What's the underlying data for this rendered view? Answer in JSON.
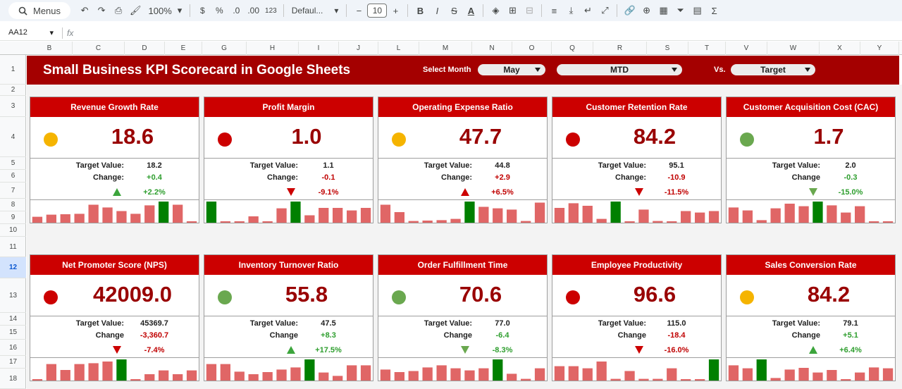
{
  "toolbar": {
    "menus_label": "Menus",
    "zoom": "100%",
    "currency": "$",
    "percent": "%",
    "dec_decrease": ".0",
    "dec_increase": ".00",
    "number_format": "123",
    "font": "Defaul...",
    "font_size": "10",
    "bold": "B",
    "italic": "I"
  },
  "formula_bar": {
    "cell_ref": "AA12",
    "fx": "fx"
  },
  "columns": [
    "B",
    "C",
    "D",
    "E",
    "G",
    "H",
    "I",
    "J",
    "L",
    "M",
    "N",
    "O",
    "Q",
    "R",
    "S",
    "T",
    "V",
    "W",
    "X",
    "Y"
  ],
  "rows": [
    "1",
    "2",
    "3",
    "4",
    "5",
    "6",
    "7",
    "8",
    "9",
    "10",
    "11",
    "12",
    "13",
    "14",
    "15",
    "16",
    "17",
    "18"
  ],
  "selected_row": "12",
  "banner": {
    "title": "Small Business KPI Scorecard in Google Sheets",
    "select_month_label": "Select Month",
    "month": "May",
    "period": "MTD",
    "vs_label": "Vs.",
    "compare": "Target"
  },
  "colors": {
    "banner": "#a40000",
    "header": "#cc0000",
    "dot_yellow": "#f5b400",
    "dot_red": "#cc0000",
    "dot_green": "#6aa84f",
    "bar_red": "#e06666",
    "bar_green": "#008000"
  },
  "cards": [
    {
      "title": "Revenue Growth Rate",
      "value": "18.6",
      "status": "yellow",
      "target_label": "Target Value:",
      "target": "18.2",
      "change_label": "Change:",
      "change": "+0.4",
      "change_sign": "pos",
      "arrow": "up-green",
      "pct": "+2.2%",
      "pct_sign": "pos",
      "bars": [
        0.28,
        0.38,
        0.4,
        0.42,
        0.85,
        0.72,
        0.55,
        0.42,
        0.82,
        1.0,
        0.85,
        0.06
      ],
      "highlight": 9
    },
    {
      "title": "Profit Margin",
      "value": "1.0",
      "status": "red",
      "target_label": "Target Value:",
      "target": "1.1",
      "change_label": "Change:",
      "change": "-0.1",
      "change_sign": "neg",
      "arrow": "down-red",
      "pct": "-9.1%",
      "pct_sign": "neg",
      "bars": [
        1.0,
        0.06,
        0.06,
        0.3,
        0.06,
        0.68,
        1.0,
        0.35,
        0.7,
        0.7,
        0.58,
        0.7
      ],
      "highlight_list": [
        0,
        6
      ]
    },
    {
      "title": "Operating Expense Ratio",
      "value": "47.7",
      "status": "yellow",
      "target_label": "Target Value:",
      "target": "44.8",
      "change_label": "Change:",
      "change": "+2.9",
      "change_sign": "neg",
      "arrow": "up-red",
      "pct": "+6.5%",
      "pct_sign": "neg",
      "bars": [
        0.85,
        0.5,
        0.08,
        0.1,
        0.12,
        0.18,
        1.0,
        0.75,
        0.68,
        0.62,
        0.08,
        0.95
      ],
      "highlight": 6
    },
    {
      "title": "Customer Retention Rate",
      "value": "84.2",
      "status": "red",
      "target_label": "Target Value:",
      "target": "95.1",
      "change_label": "Change:",
      "change": "-10.9",
      "change_sign": "neg",
      "arrow": "down-red",
      "pct": "-11.5%",
      "pct_sign": "neg",
      "bars": [
        0.7,
        0.92,
        0.8,
        0.18,
        1.0,
        0.06,
        0.62,
        0.08,
        0.06,
        0.55,
        0.48,
        0.55
      ],
      "highlight": 4
    },
    {
      "title": "Customer Acquisition Cost (CAC)",
      "value": "1.7",
      "status": "green",
      "target_label": "Target Value:",
      "target": "2.0",
      "change_label": "Change",
      "change": "-0.3",
      "change_sign": "pos",
      "arrow": "down-green",
      "pct": "-15.0%",
      "pct_sign": "pos",
      "bars": [
        0.72,
        0.58,
        0.12,
        0.68,
        0.9,
        0.78,
        1.0,
        0.82,
        0.48,
        0.78,
        0.05,
        0.05
      ],
      "highlight": 6
    },
    {
      "title": "Net Promoter Score (NPS)",
      "value": "42009.0",
      "status": "red",
      "target_label": "Target Value:",
      "target": "45369.7",
      "change_label": "Change",
      "change": "-3,360.7",
      "change_sign": "neg",
      "arrow": "down-red",
      "pct": "-7.4%",
      "pct_sign": "neg",
      "bars": [
        0.06,
        0.78,
        0.5,
        0.78,
        0.82,
        0.9,
        1.0,
        0.06,
        0.3,
        0.48,
        0.3,
        0.48
      ],
      "highlight": 6
    },
    {
      "title": "Inventory Turnover Ratio",
      "value": "55.8",
      "status": "green",
      "target_label": "Target Value:",
      "target": "47.5",
      "change_label": "Change",
      "change": "+8.3",
      "change_sign": "pos",
      "arrow": "up-green",
      "pct": "+17.5%",
      "pct_sign": "pos",
      "bars": [
        0.78,
        0.78,
        0.42,
        0.3,
        0.4,
        0.52,
        0.62,
        1.0,
        0.38,
        0.22,
        0.72,
        0.72
      ],
      "highlight": 7
    },
    {
      "title": "Order Fulfillment Time",
      "value": "70.6",
      "status": "green",
      "target_label": "Target Value:",
      "target": "77.0",
      "change_label": "Change",
      "change": "-6.4",
      "change_sign": "pos",
      "arrow": "down-green",
      "pct": "-8.3%",
      "pct_sign": "pos",
      "bars": [
        0.52,
        0.4,
        0.45,
        0.62,
        0.72,
        0.58,
        0.48,
        0.58,
        1.0,
        0.32,
        0.08,
        0.58
      ],
      "highlight": 8
    },
    {
      "title": "Employee Productivity",
      "value": "96.6",
      "status": "red",
      "target_label": "Target Value:",
      "target": "115.0",
      "change_label": "Change",
      "change": "-18.4",
      "change_sign": "neg",
      "arrow": "down-red",
      "pct": "-16.0%",
      "pct_sign": "neg",
      "bars": [
        0.68,
        0.68,
        0.58,
        0.9,
        0.08,
        0.45,
        0.08,
        0.08,
        0.58,
        0.05,
        0.05,
        1.0
      ],
      "highlight": 11
    },
    {
      "title": "Sales Conversion Rate",
      "value": "84.2",
      "status": "yellow",
      "target_label": "Target Value:",
      "target": "79.1",
      "change_label": "Change",
      "change": "+5.1",
      "change_sign": "pos",
      "arrow": "up-green",
      "pct": "+6.4%",
      "pct_sign": "pos",
      "bars": [
        0.72,
        0.58,
        1.0,
        0.12,
        0.52,
        0.6,
        0.38,
        0.5,
        0.05,
        0.38,
        0.62,
        0.58
      ],
      "highlight": 2
    }
  ]
}
